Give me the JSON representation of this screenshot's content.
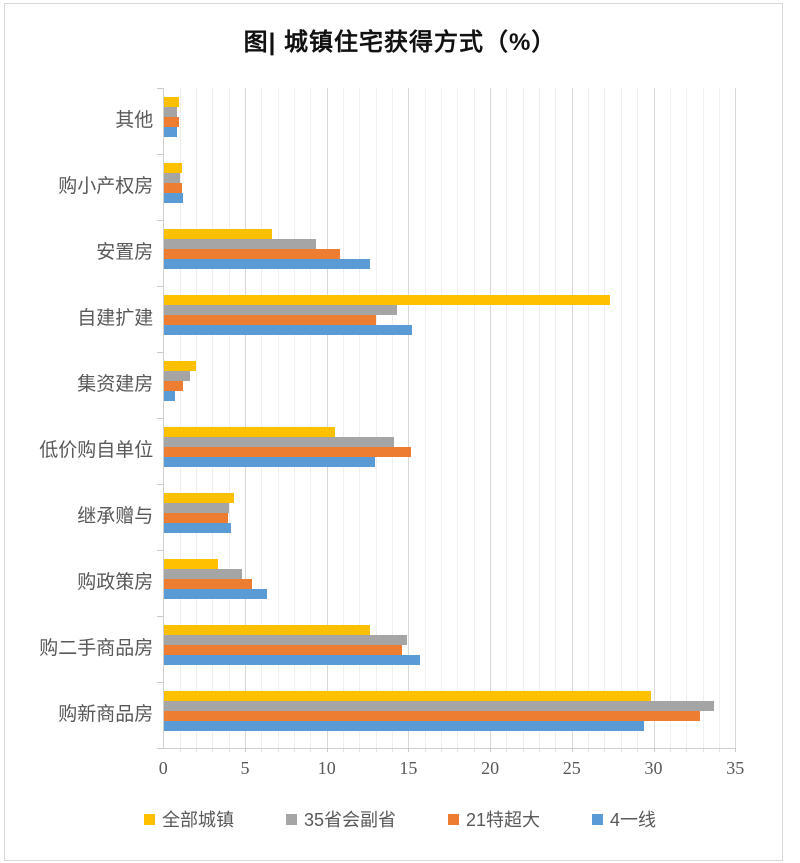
{
  "page": {
    "title": "图| 城镇住宅获得方式（%）"
  },
  "chart_data": {
    "type": "bar",
    "orientation": "horizontal",
    "title": "图| 城镇住宅获得方式（%）",
    "categories_top_to_bottom": [
      "其他",
      "购小产权房",
      "安置房",
      "自建扩建",
      "集资建房",
      "低价购自单位",
      "继承赠与",
      "购政策房",
      "购二手商品房",
      "购新商品房"
    ],
    "series": [
      {
        "name": "全部城镇",
        "color": "#FFC000",
        "values": [
          0.9,
          1.1,
          6.6,
          27.3,
          2.0,
          10.5,
          4.3,
          3.3,
          12.6,
          29.8
        ]
      },
      {
        "name": "35省会副省",
        "color": "#A5A5A5",
        "values": [
          0.8,
          1.0,
          9.3,
          14.3,
          1.6,
          14.1,
          4.0,
          4.8,
          14.9,
          33.7
        ]
      },
      {
        "name": "21特超大",
        "color": "#ED7D31",
        "values": [
          0.9,
          1.1,
          10.8,
          13.0,
          1.2,
          15.1,
          3.9,
          5.4,
          14.6,
          32.8
        ]
      },
      {
        "name": "4一线",
        "color": "#5B9BD5",
        "values": [
          0.8,
          1.2,
          12.6,
          15.2,
          0.7,
          12.9,
          4.1,
          6.3,
          15.7,
          29.4
        ]
      }
    ],
    "x_axis": {
      "min": 0,
      "max": 35,
      "tick_interval": 5,
      "minor_gridline_interval": 1,
      "tick_labels": [
        "0",
        "5",
        "10",
        "15",
        "20",
        "25",
        "30",
        "35"
      ]
    },
    "legend_position": "bottom",
    "style": {
      "minor_gridline_color": "#efefef",
      "major_gridline_color": "#d8d8d8",
      "axis_line_color": "#cfcfcf",
      "text_color": "#595959",
      "frame_border_color": "#d9d9d9",
      "grid": "on"
    }
  }
}
